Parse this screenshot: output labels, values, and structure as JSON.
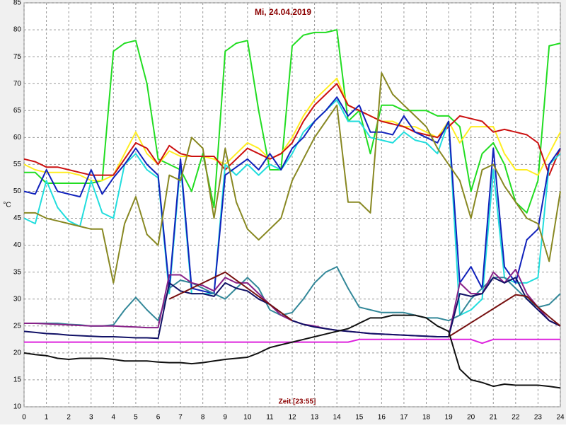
{
  "chart_data": {
    "type": "line",
    "title": "Mi, 24.04.2019",
    "xlabel": "Zeit [23:55]",
    "ylabel": "°C",
    "grid": true,
    "xlim": [
      0,
      24
    ],
    "xticks": [
      0,
      1,
      2,
      3,
      4,
      5,
      6,
      7,
      8,
      9,
      10,
      11,
      12,
      13,
      14,
      15,
      16,
      17,
      18,
      19,
      20,
      21,
      22,
      23,
      24
    ],
    "ylim": [
      10,
      85
    ],
    "yticks": [
      10,
      15,
      20,
      25,
      30,
      35,
      40,
      45,
      50,
      55,
      60,
      65,
      70,
      75,
      80,
      85
    ],
    "x": [
      0,
      0.5,
      1,
      1.5,
      2,
      2.5,
      3,
      3.5,
      4,
      4.5,
      5,
      5.5,
      6,
      6.5,
      7,
      7.5,
      8,
      8.5,
      9,
      9.5,
      10,
      10.5,
      11,
      11.5,
      12,
      12.5,
      13,
      13.5,
      14,
      14.5,
      15,
      15.5,
      16,
      16.5,
      17,
      17.5,
      18,
      18.5,
      19,
      19.5,
      20,
      20.5,
      21,
      21.5,
      22,
      22.5,
      23,
      23.5,
      24
    ],
    "series": [
      {
        "color": "#22dd22",
        "values": [
          53.5,
          53.5,
          51.5,
          51.5,
          51.5,
          51.5,
          51.5,
          52,
          76,
          77.5,
          78,
          70,
          56,
          55,
          54,
          50,
          57,
          47,
          76,
          77.5,
          78,
          65,
          54,
          54,
          77,
          79,
          79.5,
          79.5,
          80,
          63,
          65,
          57,
          66,
          66,
          65,
          65,
          65,
          64,
          64,
          62,
          50,
          57,
          59,
          55,
          48,
          46,
          52,
          77,
          77.5
        ]
      },
      {
        "color": "#ffee22",
        "values": [
          55,
          54,
          53.5,
          53.5,
          53.5,
          53,
          52,
          52,
          53,
          57,
          61,
          57,
          55,
          57.5,
          56.5,
          56.5,
          56.5,
          56,
          55,
          57,
          59,
          58,
          56,
          57,
          60,
          64,
          67,
          69,
          71,
          66,
          65,
          64,
          63,
          63,
          62,
          62,
          61,
          60,
          63,
          59,
          62,
          62,
          62,
          57,
          54,
          54,
          53,
          57,
          61
        ]
      },
      {
        "color": "#cc1111",
        "values": [
          56,
          55.5,
          54.5,
          54.5,
          54,
          53.5,
          53,
          53,
          53,
          56,
          59,
          58,
          55,
          58.5,
          57,
          56.5,
          56.5,
          56.5,
          54,
          56,
          58,
          57,
          56,
          57,
          59,
          63,
          66,
          68,
          70,
          66,
          65,
          64,
          63,
          62.5,
          62,
          61,
          60.5,
          60,
          62,
          64,
          63.5,
          63,
          61,
          61.5,
          61,
          60.5,
          59,
          53,
          58
        ]
      },
      {
        "color": "#22dddd",
        "values": [
          45,
          44,
          52,
          47,
          44.5,
          43.5,
          52,
          46,
          45,
          55,
          57,
          54,
          52.5,
          31,
          55,
          31,
          31,
          31,
          55,
          53,
          55,
          53,
          55,
          54,
          57,
          61,
          63,
          65,
          67,
          63,
          63,
          60,
          59.5,
          59,
          61,
          59.5,
          59,
          57,
          63,
          27,
          28,
          30,
          54,
          34,
          33,
          33,
          34,
          55,
          57
        ]
      },
      {
        "color": "#1122bb",
        "values": [
          50,
          49.5,
          54,
          50,
          49.5,
          49,
          54,
          49.5,
          52.5,
          55,
          58,
          55,
          53,
          32,
          56,
          32,
          31.5,
          31,
          53,
          54.5,
          56,
          54,
          57,
          54,
          58,
          60,
          63,
          65,
          67.5,
          64,
          66,
          61,
          61,
          60.5,
          64,
          61,
          60,
          59,
          63,
          33,
          36,
          32,
          58,
          36,
          33,
          41,
          43,
          55,
          58
        ]
      },
      {
        "color": "#888822",
        "values": [
          46,
          46,
          45,
          44.5,
          44,
          43.5,
          43,
          43,
          33,
          44,
          49,
          42,
          40,
          53,
          52,
          60,
          58,
          45,
          58,
          48,
          43,
          41,
          43,
          45,
          52,
          56,
          60,
          63,
          66,
          48,
          48,
          46,
          72,
          68,
          66,
          64,
          62,
          58,
          55,
          52,
          45,
          54,
          55,
          51,
          48,
          45,
          44,
          37,
          50
        ]
      },
      {
        "color": "#338899",
        "values": [
          25.5,
          25.5,
          25.5,
          25.5,
          25.3,
          25.2,
          25,
          25,
          25.2,
          28,
          30.3,
          28,
          26,
          32,
          33.5,
          33,
          32,
          31,
          30,
          32,
          34,
          32,
          28,
          27,
          27.5,
          30,
          33,
          35,
          36,
          32,
          28.5,
          28,
          27.5,
          27.5,
          27.5,
          27,
          26.5,
          26.5,
          26,
          27,
          30,
          32,
          34,
          34,
          32,
          30,
          28.5,
          29,
          31
        ]
      },
      {
        "color": "#882288",
        "values": [
          25.5,
          25.5,
          25.4,
          25.3,
          25.2,
          25.1,
          25,
          25,
          25,
          24.9,
          24.8,
          24.7,
          24.7,
          34.5,
          34.5,
          33,
          32.5,
          31.5,
          34,
          33,
          33,
          31,
          29,
          27,
          26,
          25.3,
          25,
          24.5,
          24.2,
          24,
          23.8,
          23.6,
          23.5,
          23.4,
          23.3,
          23.2,
          23.1,
          23,
          23,
          33,
          31,
          31,
          35,
          33,
          35.5,
          31,
          28.5,
          26,
          25
        ]
      },
      {
        "color": "#111166",
        "values": [
          24,
          23.8,
          23.6,
          23.5,
          23.3,
          23.2,
          23.1,
          23,
          23,
          22.9,
          22.8,
          22.8,
          22.7,
          33,
          31.5,
          31,
          31,
          30.5,
          33,
          32,
          31.5,
          30,
          29,
          27.5,
          26,
          25.3,
          24.8,
          24.5,
          24.2,
          24,
          23.8,
          23.6,
          23.5,
          23.4,
          23.3,
          23.2,
          23.1,
          23,
          23,
          31,
          30.5,
          31,
          34,
          33,
          34,
          30,
          28,
          26,
          25
        ]
      },
      {
        "color": "#771111",
        "values": [
          null,
          null,
          null,
          null,
          null,
          null,
          null,
          null,
          null,
          null,
          null,
          null,
          null,
          30,
          31,
          32,
          33,
          34,
          35,
          33.5,
          32,
          30.5,
          29,
          27.5,
          26,
          null,
          null,
          null,
          null,
          null,
          null,
          null,
          null,
          null,
          null,
          null,
          null,
          null,
          23,
          24.3,
          25.6,
          26.9,
          28.2,
          29.5,
          30.8,
          30.5,
          28.5,
          26.7,
          25
        ]
      },
      {
        "color": "#dd22dd",
        "values": [
          22,
          22,
          22,
          22,
          22,
          22,
          22,
          22,
          22,
          22,
          22,
          22,
          22,
          22,
          22,
          22,
          22,
          22,
          22,
          22,
          22,
          22,
          22,
          22,
          22,
          22,
          22,
          22,
          22,
          22,
          22.5,
          22.5,
          22.5,
          22.5,
          22.5,
          22.5,
          22.5,
          22.5,
          22.5,
          22.5,
          22.5,
          21.8,
          22.5,
          22.5,
          22.5,
          22.5,
          22.5,
          22.5,
          22.5
        ]
      },
      {
        "color": "#111111",
        "values": [
          20,
          19.7,
          19.5,
          19,
          18.8,
          19,
          19,
          19,
          18.8,
          18.5,
          18.5,
          18.5,
          18.3,
          18.2,
          18.2,
          18,
          18.2,
          18.5,
          18.8,
          19,
          19.2,
          20,
          21,
          21.5,
          22,
          22.5,
          23,
          23.5,
          24,
          24.5,
          25.5,
          26.5,
          26.5,
          27,
          27,
          27,
          26.5,
          25,
          24,
          17,
          15,
          14.5,
          13.8,
          14.2,
          14,
          14,
          14,
          13.8,
          13.5
        ]
      }
    ]
  }
}
